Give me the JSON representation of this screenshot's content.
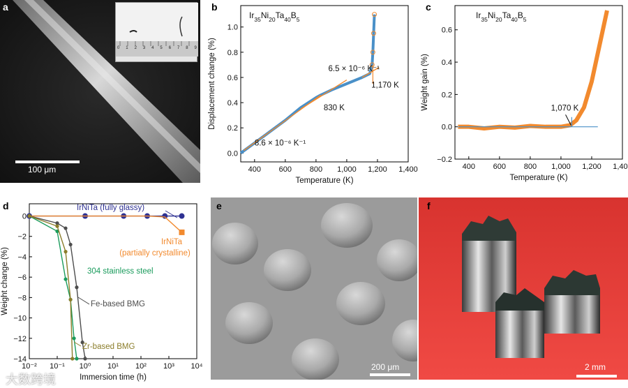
{
  "panel_labels": {
    "a": "a",
    "b": "b",
    "c": "c",
    "d": "d",
    "e": "e",
    "f": "f"
  },
  "panel_a": {
    "scale_bar": "100 μm",
    "inset_ruler_ticks": [
      "0",
      "1",
      "2",
      "3",
      "4",
      "5",
      "6",
      "7",
      "8",
      "9"
    ]
  },
  "panel_e": {
    "scale_bar": "200 μm"
  },
  "panel_f": {
    "scale_bar": "2 mm"
  },
  "watermark": "大数跨境",
  "chart_data": [
    {
      "id": "b",
      "type": "line",
      "title_base": "Ir",
      "title_parts": [
        "35",
        "Ni",
        "20",
        "Ta",
        "40",
        "B",
        "5"
      ],
      "xlabel": "Temperature (K)",
      "ylabel": "Displacement change (%)",
      "xlim": [
        310,
        1400
      ],
      "ylim": [
        -0.07,
        1.17
      ],
      "xticks": [
        400,
        600,
        800,
        1000,
        1200,
        1400
      ],
      "xtick_labels": [
        "400",
        "600",
        "800",
        "1,000",
        "1,200",
        "1,400"
      ],
      "yticks": [
        0,
        0.2,
        0.4,
        0.6,
        0.8,
        1.0
      ],
      "ytick_labels": [
        "0.0",
        "0.2",
        "0.4",
        "0.6",
        "0.8",
        "1.0"
      ],
      "series": [
        {
          "name": "displacement",
          "color": "#4a90c8",
          "x": [
            310,
            400,
            500,
            600,
            700,
            800,
            830,
            900,
            1000,
            1100,
            1150,
            1165,
            1170,
            1175,
            1180
          ],
          "y": [
            0.0,
            0.08,
            0.17,
            0.26,
            0.36,
            0.44,
            0.46,
            0.5,
            0.55,
            0.6,
            0.63,
            0.7,
            0.8,
            0.95,
            1.1
          ]
        },
        {
          "name": "fit-low",
          "color": "#f28a2e",
          "x": [
            330,
            830
          ],
          "y": [
            0.02,
            0.46
          ]
        },
        {
          "name": "fit-high",
          "color": "#f28a2e",
          "x": [
            700,
            1000
          ],
          "y": [
            0.35,
            0.58
          ]
        },
        {
          "name": "fit-supercooled",
          "color": "#f28a2e",
          "x": [
            1100,
            1210
          ],
          "y": [
            0.6,
            0.68
          ]
        }
      ],
      "annotations": [
        {
          "text": "6.5 × 10⁻⁶ K⁻¹",
          "x": 880,
          "y": 0.65
        },
        {
          "text": "830 K",
          "x": 850,
          "y": 0.34
        },
        {
          "text": "1,170 K",
          "x": 1160,
          "y": 0.52
        },
        {
          "text": "8.6 × 10⁻⁶ K⁻¹",
          "x": 400,
          "y": 0.06
        }
      ]
    },
    {
      "id": "c",
      "type": "line",
      "title_base": "Ir",
      "title_parts": [
        "35",
        "Ni",
        "20",
        "Ta",
        "40",
        "B",
        "5"
      ],
      "xlabel": "Temperature (K)",
      "ylabel": "Weight gain (%)",
      "xlim": [
        310,
        1400
      ],
      "ylim": [
        -0.2,
        0.75
      ],
      "xticks": [
        400,
        600,
        800,
        1000,
        1200,
        1400
      ],
      "xtick_labels": [
        "400",
        "600",
        "800",
        "1,000",
        "1,200",
        "1,400"
      ],
      "yticks": [
        -0.2,
        0,
        0.2,
        0.4,
        0.6
      ],
      "ytick_labels": [
        "−0.2",
        "0.0",
        "0.2",
        "0.4",
        "0.6"
      ],
      "series": [
        {
          "name": "weight gain",
          "color": "#f28a2e",
          "x": [
            330,
            400,
            500,
            600,
            700,
            800,
            900,
            1000,
            1060,
            1100,
            1150,
            1200,
            1250,
            1300
          ],
          "y": [
            0.0,
            0.0,
            -0.01,
            0.0,
            -0.005,
            0.005,
            0.0,
            0.0,
            0.01,
            0.04,
            0.12,
            0.28,
            0.5,
            0.72
          ]
        },
        {
          "name": "baseline",
          "color": "#4a90c8",
          "x": [
            330,
            1240
          ],
          "y": [
            0.0,
            0.0
          ]
        }
      ],
      "annotations": [
        {
          "text": "1,070 K",
          "x": 1070,
          "y": 0.08
        }
      ]
    },
    {
      "id": "d",
      "type": "line",
      "xlabel": "Immersion time (h)",
      "ylabel": "Weight change (%)",
      "xscale": "log",
      "xlim": [
        0.01,
        10000
      ],
      "ylim": [
        -14,
        1.2
      ],
      "xticks": [
        0.01,
        0.1,
        1,
        10,
        100,
        1000,
        10000
      ],
      "xtick_labels": [
        "10⁻²",
        "10⁻¹",
        "10⁰",
        "10¹",
        "10²",
        "10³",
        "10⁴"
      ],
      "yticks": [
        0,
        -2,
        -4,
        -6,
        -8,
        -10,
        -12,
        -14
      ],
      "ytick_labels": [
        "0",
        "−2",
        "−4",
        "−6",
        "−8",
        "−10",
        "−12",
        "−14"
      ],
      "series": [
        {
          "name": "IrNiTa (fully glassy)",
          "label": "IrNiTa (fully glassy)",
          "color": "#2e3192",
          "x": [
            0.01,
            1,
            24,
            168,
            720,
            2900
          ],
          "y": [
            0,
            0,
            0,
            0,
            0,
            0
          ]
        },
        {
          "name": "IrNiTa (partially crystalline)",
          "label_lines": [
            "IrNiTa",
            "(partially crystalline)"
          ],
          "color": "#f28a2e",
          "x": [
            0.01,
            1,
            24,
            168,
            720,
            2900
          ],
          "y": [
            0,
            0,
            0,
            0,
            -0.1,
            -1.6
          ]
        },
        {
          "name": "304 stainless steel",
          "label": "304 stainless steel",
          "color": "#1a9b5c",
          "x": [
            0.01,
            0.1,
            0.2,
            0.3,
            0.4,
            0.5
          ],
          "y": [
            0,
            -1.5,
            -6.2,
            -8.2,
            -12,
            -14
          ]
        },
        {
          "name": "Fe-based BMG",
          "label": "Fe-based BMG",
          "color": "#4d4d4d",
          "x": [
            0.01,
            0.1,
            0.2,
            0.3,
            0.5,
            0.8,
            1.0
          ],
          "y": [
            0,
            -0.7,
            -1.2,
            -2.8,
            -7.0,
            -12.4,
            -14
          ]
        },
        {
          "name": "Zr-based BMG",
          "label": "Zr-based BMG",
          "color": "#8b7d2a",
          "x": [
            0.01,
            0.1,
            0.2,
            0.3,
            0.35
          ],
          "y": [
            0,
            -1.0,
            -3.5,
            -8.2,
            -14
          ]
        }
      ]
    }
  ]
}
